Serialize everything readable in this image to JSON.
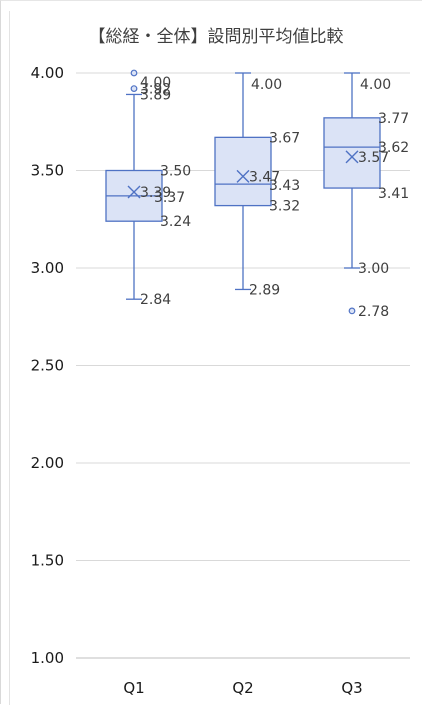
{
  "chart_data": {
    "type": "box",
    "title": "【総経・全体】設問別平均値比較",
    "xlabel": "",
    "ylabel": "",
    "ylim": [
      1.0,
      4.0
    ],
    "ytick_step": 0.5,
    "grid": true,
    "legend": "none",
    "colors": {
      "box_fill": "#dbe3f6",
      "box_stroke": "#4f72c4",
      "grid": "#d9d9d9",
      "axis": "#bfbfbf"
    },
    "categories": [
      "Q1",
      "Q2",
      "Q3"
    ],
    "boxes": [
      {
        "category": "Q1",
        "min": 2.84,
        "q1": 3.24,
        "median": 3.37,
        "q3": 3.5,
        "max": 3.89,
        "mean": 3.39,
        "outliers": [
          4.0,
          3.92
        ]
      },
      {
        "category": "Q2",
        "min": 2.89,
        "q1": 3.32,
        "median": 3.43,
        "q3": 3.67,
        "max": 4.0,
        "mean": 3.47,
        "outliers": []
      },
      {
        "category": "Q3",
        "min": 3.0,
        "q1": 3.41,
        "median": 3.62,
        "q3": 3.77,
        "max": 4.0,
        "mean": 3.57,
        "outliers": [
          2.78
        ]
      }
    ],
    "labels": [
      [
        "4.00",
        "3.92",
        "3.89",
        "3.50",
        "3.39",
        "3.37",
        "3.24",
        "2.84"
      ],
      [
        "4.00",
        "3.67",
        "3.47",
        "3.43",
        "3.32",
        "2.89"
      ],
      [
        "4.00",
        "3.77",
        "3.62",
        "3.57",
        "3.41",
        "3.00",
        "2.78"
      ]
    ]
  }
}
